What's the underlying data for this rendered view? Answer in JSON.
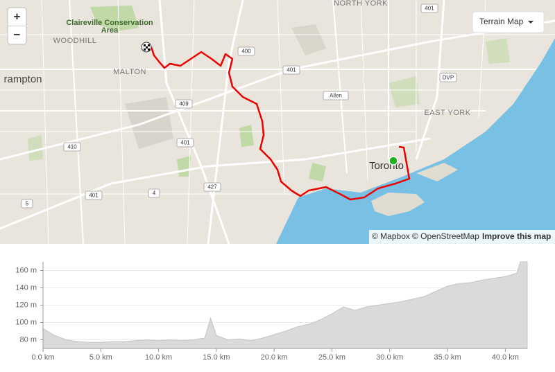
{
  "map": {
    "controls": {
      "zoom_in": "+",
      "zoom_out": "−"
    },
    "style_selector": "Terrain Map",
    "labels": [
      "NORTH YORK",
      "Claireville Conservation",
      "Area",
      "WOODHILL",
      "MALTON",
      "rampton",
      "EAST YORK",
      "Toronto"
    ],
    "shields": [
      "400",
      "401",
      "401",
      "DVP",
      "Allen",
      "409",
      "401",
      "410",
      "427",
      "4",
      "401",
      "5"
    ],
    "attribution": {
      "mapbox": "© Mapbox",
      "osm": "© OpenStreetMap",
      "improve": "Improve this map"
    }
  },
  "elevation_chart": {
    "type": "area",
    "x": [
      0,
      1,
      2,
      3,
      4,
      5,
      6,
      7,
      8,
      9,
      10,
      11,
      12,
      13,
      14,
      14.5,
      15,
      16,
      17,
      18,
      19,
      20,
      21,
      22,
      23,
      24,
      25,
      26,
      27,
      28,
      29,
      30,
      31,
      32,
      33,
      34,
      35,
      36,
      37,
      38,
      39,
      40,
      41,
      41.3,
      41.9
    ],
    "values": [
      93,
      85,
      80,
      78,
      77,
      77,
      78,
      78,
      79,
      80,
      79,
      80,
      79,
      80,
      82,
      105,
      85,
      80,
      81,
      79,
      82,
      86,
      90,
      95,
      98,
      103,
      110,
      118,
      114,
      118,
      120,
      122,
      124,
      127,
      130,
      136,
      142,
      145,
      146,
      149,
      151,
      153,
      157,
      170,
      170
    ],
    "color": "#dadada",
    "xlim": [
      0,
      41.9
    ],
    "ylim": [
      70,
      170
    ],
    "xticks": [
      {
        "value": 0,
        "label": "0.0 km"
      },
      {
        "value": 5,
        "label": "5.0 km"
      },
      {
        "value": 10,
        "label": "10.0 km"
      },
      {
        "value": 15,
        "label": "15.0 km"
      },
      {
        "value": 20,
        "label": "20.0 km"
      },
      {
        "value": 25,
        "label": "25.0 km"
      },
      {
        "value": 30,
        "label": "30.0 km"
      },
      {
        "value": 35,
        "label": "35.0 km"
      },
      {
        "value": 40,
        "label": "40.0 km"
      }
    ],
    "yticks": [
      {
        "value": 80,
        "label": "80 m"
      },
      {
        "value": 100,
        "label": "100 m"
      },
      {
        "value": 120,
        "label": "120 m"
      },
      {
        "value": 140,
        "label": "140 m"
      },
      {
        "value": 160,
        "label": "160 m"
      }
    ],
    "grid": true
  }
}
